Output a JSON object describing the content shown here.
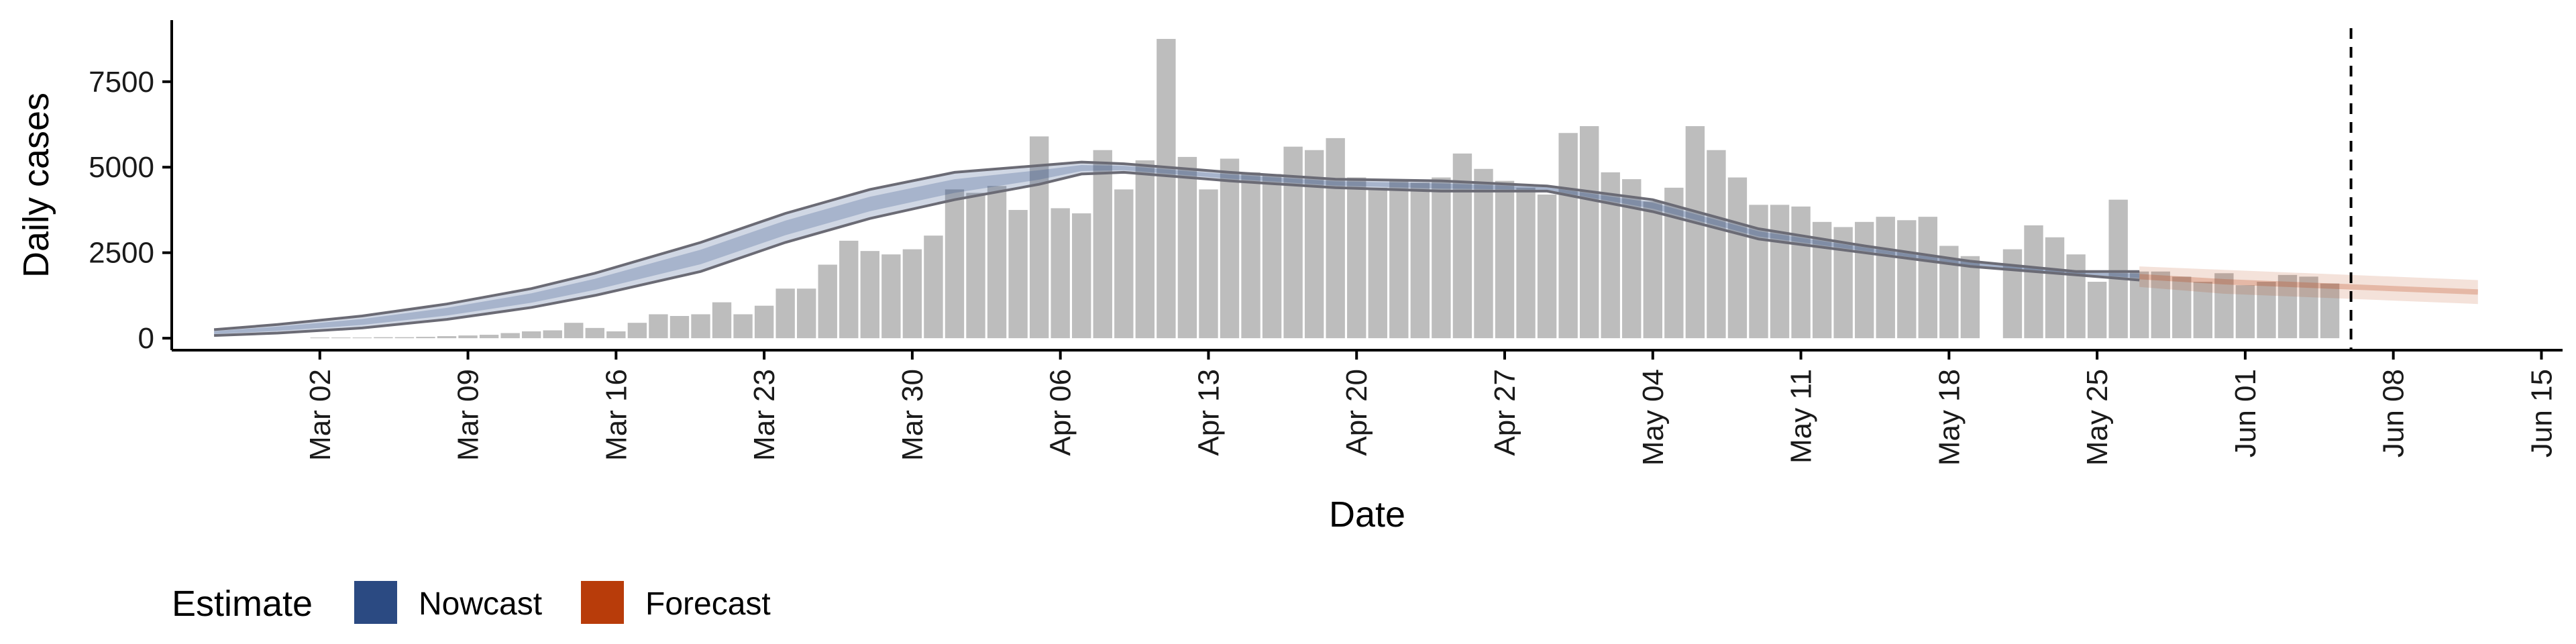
{
  "chart_data": {
    "type": "bar",
    "xlabel": "Date",
    "ylabel": "Daily cases",
    "ylim": [
      -350,
      9300
    ],
    "yticks": [
      0,
      2500,
      5000,
      7500
    ],
    "ytick_labels": [
      "0",
      "2500",
      "5000",
      "7500"
    ],
    "xtick_labels": [
      "Mar 02",
      "Mar 09",
      "Mar 16",
      "Mar 23",
      "Mar 30",
      "Apr 06",
      "Apr 13",
      "Apr 20",
      "Apr 27",
      "May 04",
      "May 11",
      "May 18",
      "May 25",
      "Jun 01",
      "Jun 08",
      "Jun 15"
    ],
    "xtick_days": [
      2,
      9,
      16,
      23,
      30,
      37,
      44,
      51,
      58,
      65,
      72,
      79,
      86,
      93,
      100,
      107
    ],
    "x_day_range": [
      -5,
      108
    ],
    "x_note": "x values are days since Feb 29 (day 1 = Mar 1)",
    "bar_start_day": 1,
    "bars": [
      0,
      20,
      20,
      20,
      30,
      30,
      40,
      60,
      80,
      100,
      150,
      200,
      230,
      450,
      300,
      200,
      450,
      700,
      650,
      700,
      1050,
      700,
      950,
      1450,
      1450,
      2150,
      2850,
      2550,
      2450,
      2600,
      3000,
      4350,
      4250,
      4450,
      3750,
      5900,
      3800,
      3650,
      5500,
      4350,
      5200,
      8750,
      5300,
      4350,
      5250,
      4850,
      4800,
      5600,
      5500,
      5850,
      4700,
      4400,
      4600,
      4550,
      4700,
      5400,
      4950,
      4600,
      4400,
      4200,
      6000,
      6200,
      4850,
      4650,
      4000,
      4400,
      6200,
      5500,
      4700,
      3900,
      3900,
      3850,
      3400,
      3250,
      3400,
      3550,
      3450,
      3550,
      2700,
      2400,
      0,
      2600,
      3300,
      2950,
      2450,
      1650,
      4050,
      1950,
      1950,
      1800,
      1650,
      1900,
      1550,
      1650,
      1850,
      1800,
      1600
    ],
    "vline_day": 98,
    "series": [
      {
        "name": "Nowcast",
        "color": "#2b4a82",
        "days": [
          -3,
          0,
          4,
          8,
          12,
          15,
          20,
          24,
          28,
          32,
          36,
          38,
          40,
          45,
          50,
          55,
          60,
          65,
          70,
          75,
          80,
          85,
          88
        ],
        "lower": [
          80,
          150,
          300,
          550,
          900,
          1250,
          1950,
          2800,
          3500,
          4050,
          4500,
          4800,
          4850,
          4600,
          4400,
          4300,
          4300,
          3700,
          2900,
          2500,
          2100,
          1850,
          1700
        ],
        "upper": [
          250,
          400,
          650,
          1000,
          1450,
          1900,
          2800,
          3650,
          4350,
          4850,
          5050,
          5150,
          5100,
          4850,
          4650,
          4600,
          4450,
          4050,
          3200,
          2700,
          2250,
          1950,
          1950
        ]
      },
      {
        "name": "Forecast",
        "color": "#b83c0a",
        "days": [
          88,
          92,
          96,
          100,
          104
        ],
        "lower": [
          1500,
          1300,
          1200,
          1100,
          1000
        ],
        "upper": [
          2100,
          2000,
          1900,
          1800,
          1700
        ],
        "mid": [
          1800,
          1650,
          1550,
          1450,
          1350
        ]
      }
    ],
    "legend": {
      "title": "Estimate",
      "position": "bottom-left",
      "entries": [
        {
          "label": "Nowcast",
          "color": "#2b4a82"
        },
        {
          "label": "Forecast",
          "color": "#b83c0a"
        }
      ]
    }
  }
}
